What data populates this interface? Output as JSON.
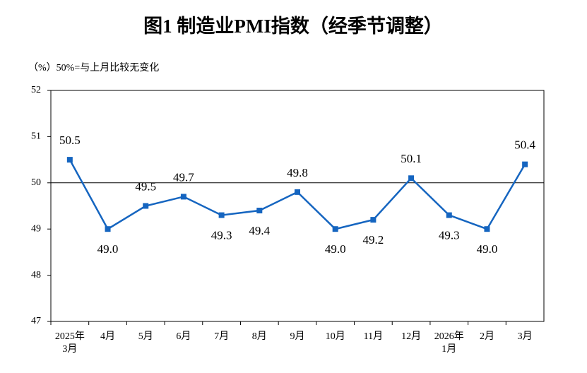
{
  "chart_data": {
    "type": "line",
    "title": "图1  制造业PMI指数（经季节调整）",
    "subtitle": "（%）50%=与上月比较无变化",
    "categories": [
      "2025年\n3月",
      "4月",
      "5月",
      "6月",
      "7月",
      "8月",
      "9月",
      "10月",
      "11月",
      "12月",
      "2026年\n1月",
      "2月",
      "3月"
    ],
    "series": [
      {
        "name": "制造业PMI",
        "color": "#1565c0",
        "values": [
          50.5,
          49.0,
          49.5,
          49.7,
          49.3,
          49.4,
          49.8,
          49.0,
          49.2,
          50.1,
          49.3,
          49.0,
          50.4
        ],
        "value_labels": [
          "50.5",
          "49.0",
          "49.5",
          "49.7",
          "49.3",
          "49.4",
          "49.8",
          "49.0",
          "49.2",
          "50.1",
          "49.3",
          "49.0",
          "50.4"
        ]
      }
    ],
    "ylim": [
      47,
      52
    ],
    "yticks": [
      47,
      48,
      49,
      50,
      51,
      52
    ],
    "reference_line": 50
  }
}
